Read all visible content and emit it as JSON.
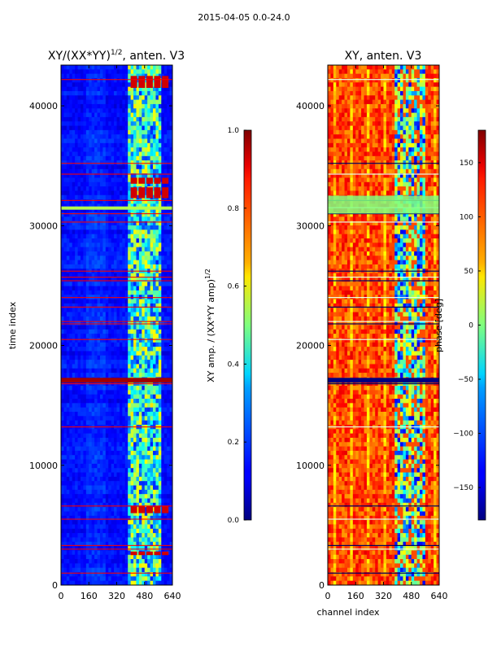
{
  "suptitle": "2015-04-05 0.0-24.0",
  "chart_data": [
    {
      "type": "heatmap",
      "title": "XY/(XX*YY)^(1/2), anten. V3",
      "title_main": "XY/(XX*YY)",
      "title_exp": "1/2",
      "title_tail": ", anten. V3",
      "xlabel": "",
      "ylabel": "time index",
      "xlim": [
        0,
        640
      ],
      "ylim": [
        0,
        43400
      ],
      "xticks": [
        0,
        160,
        320,
        480,
        640
      ],
      "yticks": [
        0,
        10000,
        20000,
        30000,
        40000
      ],
      "ytick_labels": [
        "0",
        "10000",
        "20000",
        "30000",
        "40000"
      ],
      "colormap": "jet",
      "colorbar": {
        "label": "XY amp. / (XX*YY amp)^(1/2)",
        "label_main": "XY amp. / (XX*YY amp)",
        "label_exp": "1/2",
        "range": [
          0.0,
          1.0
        ],
        "ticks": [
          0.0,
          0.2,
          0.4,
          0.6,
          0.8,
          1.0
        ],
        "tick_labels": [
          "0.0",
          "0.2",
          "0.4",
          "0.6",
          "0.8",
          "1.0"
        ]
      },
      "band_rows": [
        1000,
        3000,
        3300,
        5500,
        6600,
        13200,
        16800,
        17000,
        17200,
        20500,
        21800,
        22000,
        23200,
        24000,
        25400,
        25700,
        26200,
        30300,
        31000,
        31500,
        32100,
        34300,
        35200,
        42200
      ]
    },
    {
      "type": "heatmap",
      "title": "XY, anten. V3",
      "xlabel": "channel index",
      "ylabel": "",
      "xlim": [
        0,
        640
      ],
      "ylim": [
        0,
        43400
      ],
      "xticks": [
        0,
        160,
        320,
        480,
        640
      ],
      "yticks": [
        0,
        10000,
        20000,
        30000,
        40000
      ],
      "ytick_labels": [
        "0",
        "10000",
        "20000",
        "30000",
        "40000"
      ],
      "colormap": "jet",
      "colorbar": {
        "label": "phase [deg]",
        "range": [
          -180,
          180
        ],
        "ticks": [
          -150,
          -100,
          -50,
          0,
          50,
          100,
          150
        ],
        "tick_labels": [
          "−150",
          "−100",
          "−50",
          "0",
          "50",
          "100",
          "150"
        ]
      },
      "band_rows": [
        1000,
        3000,
        3300,
        5500,
        6600,
        13200,
        16800,
        17000,
        17200,
        20500,
        21800,
        22000,
        23200,
        24000,
        25400,
        25700,
        26200,
        30300,
        31000,
        31500,
        32100,
        34300,
        35200,
        42200
      ]
    }
  ],
  "colors": {
    "jet_low": "#00007f",
    "jet_mid": "#7fff7f",
    "jet_high": "#7f0000"
  }
}
